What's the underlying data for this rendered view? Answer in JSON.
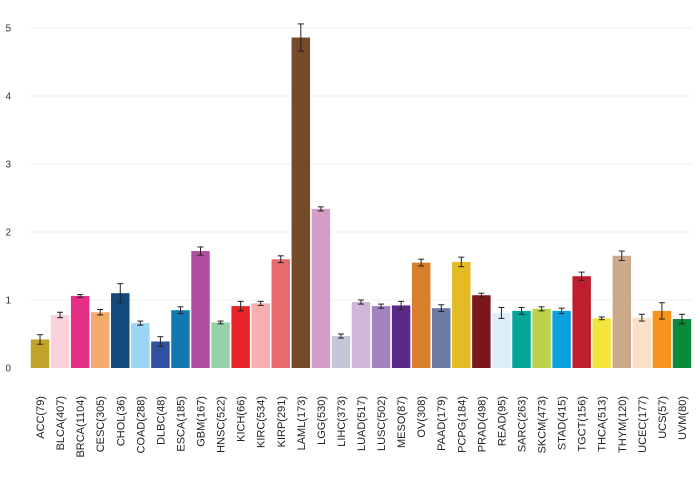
{
  "chart_data": {
    "type": "bar",
    "title": "",
    "xlabel": "",
    "ylabel": "",
    "ylim": [
      0,
      5.4
    ],
    "yticks": [
      0,
      1,
      2,
      3,
      4,
      5
    ],
    "grid": true,
    "legend": "none",
    "categories": [
      "ACC(79)",
      "BLCA(407)",
      "BRCA(1104)",
      "CESC(305)",
      "CHOL(36)",
      "COAD(288)",
      "DLBC(48)",
      "ESCA(185)",
      "GBM(167)",
      "HNSC(522)",
      "KICH(66)",
      "KIRC(534)",
      "KIRP(291)",
      "LAML(173)",
      "LGG(530)",
      "LIHC(373)",
      "LUAD(517)",
      "LUSC(502)",
      "MESO(87)",
      "OV(308)",
      "PAAD(179)",
      "PCPG(184)",
      "PRAD(498)",
      "READ(95)",
      "SARC(263)",
      "SKCM(473)",
      "STAD(415)",
      "TGCT(156)",
      "THCA(513)",
      "THYM(120)",
      "UCEC(177)",
      "UCS(57)",
      "UVM(80)"
    ],
    "values": [
      0.42,
      0.78,
      1.06,
      0.82,
      1.1,
      0.66,
      0.39,
      0.85,
      1.72,
      0.67,
      0.91,
      0.95,
      1.6,
      4.86,
      2.34,
      0.47,
      0.97,
      0.91,
      0.92,
      1.55,
      0.88,
      1.56,
      1.07,
      0.81,
      0.84,
      0.87,
      0.84,
      1.35,
      0.73,
      1.65,
      0.74,
      0.84,
      0.72
    ],
    "errors": [
      0.07,
      0.04,
      0.02,
      0.04,
      0.14,
      0.03,
      0.07,
      0.05,
      0.06,
      0.02,
      0.07,
      0.03,
      0.05,
      0.2,
      0.03,
      0.03,
      0.03,
      0.03,
      0.06,
      0.05,
      0.05,
      0.07,
      0.03,
      0.08,
      0.05,
      0.03,
      0.04,
      0.06,
      0.02,
      0.07,
      0.05,
      0.12,
      0.07
    ],
    "colors": [
      "#C4A32B",
      "#F9D2DC",
      "#E52F86",
      "#F4AA6A",
      "#124A7D",
      "#9BD5F3",
      "#3050A0",
      "#1377B0",
      "#B04E9F",
      "#98D2AA",
      "#E82429",
      "#F6AEAE",
      "#E86C6C",
      "#754A28",
      "#D29EC8",
      "#C5C7D9",
      "#CFB7D9",
      "#A283BE",
      "#5A2A86",
      "#D97E2C",
      "#6E7AA4",
      "#E4BB25",
      "#7A171B",
      "#DDEEFA",
      "#03A599",
      "#BCD24A",
      "#0AA1DE",
      "#BE1E2D",
      "#F2E63D",
      "#CBA98A",
      "#FBE0C8",
      "#F7941D",
      "#0A8A3A"
    ]
  }
}
